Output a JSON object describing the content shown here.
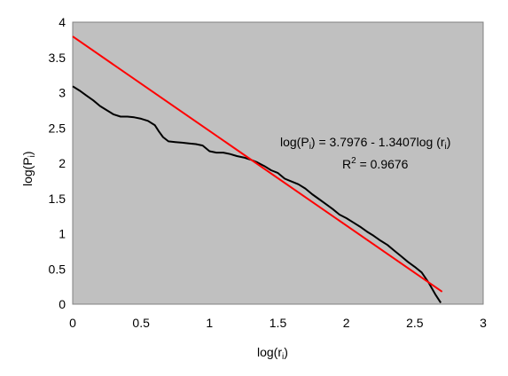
{
  "chart_data": {
    "type": "line",
    "xlabel": "log(r",
    "xlabel_sub": "i",
    "xlabel_end": ")",
    "ylabel": "log(P",
    "ylabel_sub": "i",
    "ylabel_end": ")",
    "xlim": [
      0,
      3
    ],
    "ylim": [
      0,
      4
    ],
    "x_ticks": [
      "0",
      "0.5",
      "1",
      "1.5",
      "2",
      "2.5",
      "3"
    ],
    "y_ticks": [
      "0",
      "0.5",
      "1",
      "1.5",
      "2",
      "2.5",
      "3",
      "3.5",
      "4"
    ],
    "grid": false,
    "plot_background": "#c0c0c0",
    "series": [
      {
        "color": "#000000",
        "x": [
          0,
          0.05,
          0.1,
          0.15,
          0.2,
          0.25,
          0.3,
          0.35,
          0.4,
          0.45,
          0.5,
          0.55,
          0.6,
          0.63,
          0.66,
          0.7,
          0.75,
          0.8,
          0.85,
          0.9,
          0.95,
          1.0,
          1.05,
          1.1,
          1.15,
          1.2,
          1.25,
          1.3,
          1.35,
          1.4,
          1.45,
          1.5,
          1.55,
          1.6,
          1.65,
          1.7,
          1.75,
          1.8,
          1.85,
          1.9,
          1.95,
          2.0,
          2.05,
          2.1,
          2.15,
          2.2,
          2.25,
          2.3,
          2.35,
          2.4,
          2.45,
          2.5,
          2.55,
          2.6,
          2.65,
          2.69
        ],
        "y": [
          3.09,
          3.03,
          2.96,
          2.89,
          2.81,
          2.75,
          2.69,
          2.66,
          2.66,
          2.65,
          2.63,
          2.6,
          2.54,
          2.45,
          2.37,
          2.31,
          2.3,
          2.29,
          2.28,
          2.27,
          2.25,
          2.17,
          2.15,
          2.15,
          2.13,
          2.1,
          2.08,
          2.05,
          2.01,
          1.96,
          1.9,
          1.86,
          1.78,
          1.74,
          1.7,
          1.64,
          1.56,
          1.49,
          1.42,
          1.35,
          1.27,
          1.22,
          1.16,
          1.1,
          1.03,
          0.97,
          0.9,
          0.84,
          0.76,
          0.68,
          0.6,
          0.53,
          0.45,
          0.31,
          0.14,
          0.02
        ]
      },
      {
        "color": "#ff0000",
        "x": [
          0,
          2.7
        ],
        "y": [
          3.7976,
          0.1777
        ]
      }
    ],
    "annotations": {
      "equation": {
        "p1": "log(P",
        "s1": "i",
        "p2": ") = 3.7976  - 1.3407log (r",
        "s2": "i",
        "p3": ")"
      },
      "r2": {
        "p1": "R",
        "sup": "2",
        "p2": " = 0.9676"
      }
    }
  }
}
